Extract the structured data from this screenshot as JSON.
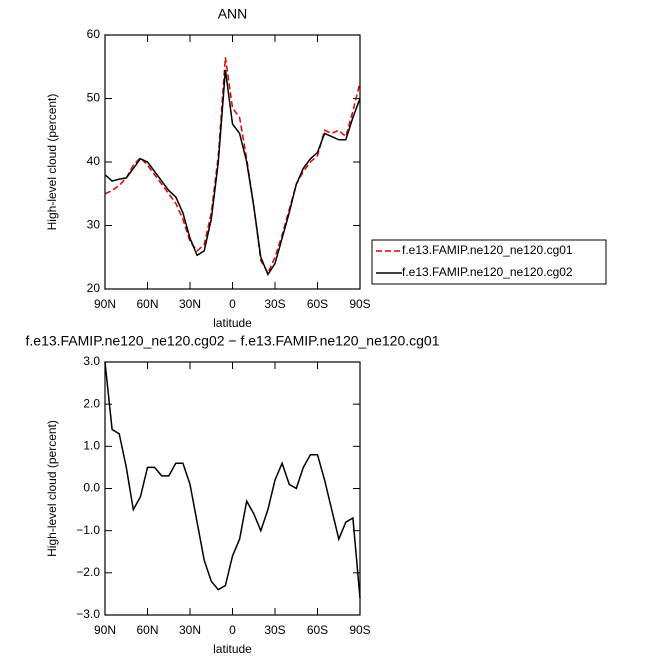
{
  "chart_data": [
    {
      "type": "line",
      "title": "ANN",
      "xlabel": "latitude",
      "ylabel": "High-level cloud (percent)",
      "x": [
        90,
        85,
        80,
        75,
        70,
        65,
        60,
        55,
        50,
        45,
        40,
        35,
        30,
        25,
        20,
        15,
        10,
        5,
        0,
        -5,
        -10,
        -15,
        -20,
        -25,
        -30,
        -35,
        -40,
        -45,
        -50,
        -55,
        -60,
        -65,
        -70,
        -75,
        -80,
        -85,
        -90
      ],
      "series": [
        {
          "name": "f.e13.FAMIP.ne120_ne120.cg01",
          "color": "#e00000",
          "dash": true,
          "values": [
            35,
            35.5,
            36.3,
            37.5,
            39.5,
            40.7,
            39.5,
            38,
            36.5,
            35,
            33.5,
            31,
            27.5,
            26,
            27,
            32,
            41,
            56.5,
            48.5,
            47,
            40.5,
            33,
            24.5,
            22.5,
            25,
            28.5,
            32.5,
            36.5,
            38.5,
            40,
            41,
            45,
            44.5,
            45,
            44,
            48,
            52.5
          ]
        },
        {
          "name": "f.e13.FAMIP.ne120_ne120.cg02",
          "color": "#000000",
          "dash": false,
          "values": [
            38,
            37,
            37.3,
            37.5,
            39,
            40.5,
            40,
            38.5,
            37,
            35.5,
            34.5,
            32,
            28,
            25.3,
            26,
            31,
            40,
            54.5,
            46,
            44.5,
            40,
            33,
            25,
            22.3,
            24,
            28,
            32,
            36.5,
            39,
            40.5,
            41.5,
            44.5,
            44,
            43.5,
            43.5,
            47,
            50
          ]
        }
      ],
      "xlim": [
        90,
        -90
      ],
      "xticks": [
        {
          "value": 90,
          "label": "90N"
        },
        {
          "value": 60,
          "label": "60N"
        },
        {
          "value": 30,
          "label": "30N"
        },
        {
          "value": 0,
          "label": "0"
        },
        {
          "value": -30,
          "label": "30S"
        },
        {
          "value": -60,
          "label": "60S"
        },
        {
          "value": -90,
          "label": "90S"
        }
      ],
      "ylim": [
        20,
        60
      ],
      "yticks": [
        20,
        30,
        40,
        50,
        60
      ],
      "legend": "right"
    },
    {
      "type": "line",
      "title": "f.e13.FAMIP.ne120_ne120.cg02 − f.e13.FAMIP.ne120_ne120.cg01",
      "xlabel": "latitude",
      "ylabel": "High-level cloud (percent)",
      "x": [
        90,
        85,
        80,
        75,
        70,
        65,
        60,
        55,
        50,
        45,
        40,
        35,
        30,
        25,
        20,
        15,
        10,
        5,
        0,
        -5,
        -10,
        -15,
        -20,
        -25,
        -30,
        -35,
        -40,
        -45,
        -50,
        -55,
        -60,
        -65,
        -70,
        -75,
        -80,
        -85,
        -90
      ],
      "series": [
        {
          "color": "#000000",
          "dash": false,
          "values": [
            3.0,
            1.4,
            1.3,
            0.5,
            -0.5,
            -0.2,
            0.5,
            0.5,
            0.3,
            0.3,
            0.6,
            0.6,
            0.1,
            -0.8,
            -1.7,
            -2.2,
            -2.4,
            -2.3,
            -1.6,
            -1.2,
            -0.3,
            -0.6,
            -1.0,
            -0.5,
            0.2,
            0.6,
            0.1,
            0.0,
            0.5,
            0.8,
            0.8,
            0.2,
            -0.5,
            -1.2,
            -0.8,
            -0.7,
            -2.6
          ]
        }
      ],
      "xlim": [
        90,
        -90
      ],
      "xticks": [
        {
          "value": 90,
          "label": "90N"
        },
        {
          "value": 60,
          "label": "60N"
        },
        {
          "value": 30,
          "label": "30N"
        },
        {
          "value": 0,
          "label": "0"
        },
        {
          "value": -30,
          "label": "30S"
        },
        {
          "value": -60,
          "label": "60S"
        },
        {
          "value": -90,
          "label": "90S"
        }
      ],
      "ylim": [
        -3,
        3
      ],
      "yticks": [
        {
          "value": -3,
          "label": "−3.0"
        },
        {
          "value": -2,
          "label": "−2.0"
        },
        {
          "value": -1,
          "label": "−1.0"
        },
        {
          "value": 0,
          "label": "0.0"
        },
        {
          "value": 1,
          "label": "1.0"
        },
        {
          "value": 2,
          "label": "2.0"
        },
        {
          "value": 3,
          "label": "3.0"
        }
      ]
    }
  ]
}
